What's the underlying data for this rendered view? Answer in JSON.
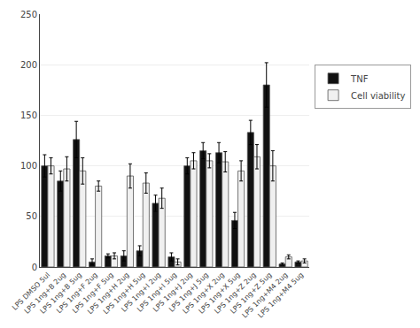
{
  "chart_data": {
    "type": "bar",
    "categories": [
      "LPS DMSO 5ul",
      "LPS 1ng+B 2ug",
      "LPS 1ng+B 5ug",
      "LPS 1ng+F 2ug",
      "LPS 1ng+F 5ug",
      "LPS 1ng+H 2ug",
      "LPS 1ng+H 5ug",
      "LPS 1ng+I 2ug",
      "LPS 1ng+I 5ug",
      "LPS 1ng+J 2ug",
      "LPS 1ng+J 5ug",
      "LPS 1ng+X 2ug",
      "LPS 1ng+X 5ug",
      "LPS 1ng+Z 2ug",
      "LPS 1ng+Z 5ug",
      "LPS 1ng+M4 2ug",
      "LPS 1ng+M4 5ug"
    ],
    "series": [
      {
        "name": "TNF",
        "color": "#111111",
        "values": [
          100,
          85,
          126,
          5,
          11,
          11,
          16,
          63,
          10,
          100,
          115,
          113,
          46,
          133,
          180,
          3,
          5
        ],
        "errors": [
          11,
          10,
          18,
          3,
          2,
          5,
          5,
          8,
          4,
          8,
          8,
          10,
          8,
          12,
          22,
          1,
          1
        ]
      },
      {
        "name": "Cell viability",
        "color": "#f0f0f0",
        "values": [
          100,
          97,
          95,
          80,
          11,
          90,
          83,
          68,
          5,
          105,
          105,
          104,
          95,
          109,
          100,
          10,
          6
        ],
        "errors": [
          8,
          12,
          13,
          5,
          3,
          12,
          10,
          10,
          3,
          8,
          7,
          10,
          10,
          12,
          15,
          2,
          2
        ]
      }
    ],
    "ylim": [
      0,
      250
    ],
    "yticks": [
      0,
      50,
      100,
      150,
      200,
      250
    ],
    "grid": true,
    "legend": "right"
  }
}
